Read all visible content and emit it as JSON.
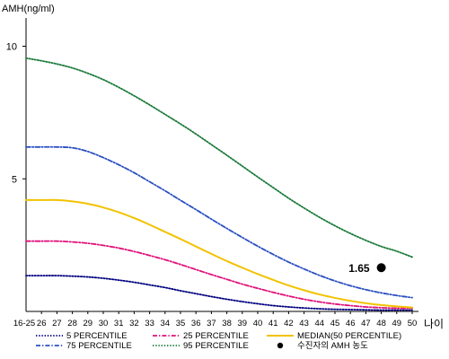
{
  "chart_data": {
    "type": "line",
    "title": "",
    "ylabel": "AMH(ng/ml)",
    "xlabel": "나이",
    "ylim": [
      0,
      11
    ],
    "yticks": [
      5,
      10
    ],
    "x": [
      "16-25",
      "26",
      "27",
      "28",
      "29",
      "30",
      "31",
      "32",
      "33",
      "34",
      "35",
      "36",
      "37",
      "38",
      "39",
      "40",
      "41",
      "42",
      "43",
      "44",
      "45",
      "46",
      "47",
      "48",
      "49",
      "50"
    ],
    "series": [
      {
        "name": "5 PERCENTILE",
        "color": "#000080",
        "style": "dotted",
        "values": [
          1.35,
          1.35,
          1.35,
          1.33,
          1.3,
          1.25,
          1.18,
          1.1,
          1.0,
          0.9,
          0.78,
          0.67,
          0.56,
          0.46,
          0.37,
          0.29,
          0.22,
          0.17,
          0.13,
          0.1,
          0.08,
          0.07,
          0.06,
          0.05,
          0.05,
          0.05
        ]
      },
      {
        "name": "25 PERCENTILE",
        "color": "#e0107a",
        "style": "dashdot",
        "values": [
          2.65,
          2.65,
          2.65,
          2.62,
          2.57,
          2.49,
          2.39,
          2.26,
          2.11,
          1.95,
          1.77,
          1.58,
          1.39,
          1.21,
          1.03,
          0.87,
          0.72,
          0.58,
          0.46,
          0.36,
          0.28,
          0.22,
          0.17,
          0.14,
          0.12,
          0.12
        ]
      },
      {
        "name": "MEDIAN(50 PERCENTILE)",
        "color": "#f2c200",
        "style": "solid",
        "values": [
          4.2,
          4.2,
          4.2,
          4.15,
          4.06,
          3.92,
          3.74,
          3.52,
          3.27,
          3.0,
          2.73,
          2.45,
          2.17,
          1.9,
          1.65,
          1.41,
          1.19,
          0.98,
          0.8,
          0.64,
          0.51,
          0.4,
          0.31,
          0.24,
          0.19,
          0.15
        ]
      },
      {
        "name": "75 PERCENTILE",
        "color": "#2a4fc0",
        "style": "dashdot",
        "values": [
          6.2,
          6.2,
          6.2,
          6.17,
          6.03,
          5.8,
          5.53,
          5.23,
          4.89,
          4.55,
          4.19,
          3.84,
          3.48,
          3.13,
          2.79,
          2.46,
          2.15,
          1.86,
          1.6,
          1.36,
          1.15,
          0.97,
          0.82,
          0.7,
          0.6,
          0.52
        ]
      },
      {
        "name": "95 PERCENTILE",
        "color": "#1a7a3a",
        "style": "dotted",
        "values": [
          9.55,
          9.45,
          9.33,
          9.18,
          8.98,
          8.74,
          8.45,
          8.13,
          7.79,
          7.43,
          7.07,
          6.69,
          6.29,
          5.89,
          5.48,
          5.07,
          4.67,
          4.27,
          3.9,
          3.55,
          3.23,
          2.94,
          2.68,
          2.45,
          2.27,
          2.05
        ]
      }
    ],
    "highlight_point": {
      "name": "수진자의 AMH 농도",
      "x": "48",
      "y": 1.65,
      "label": "1.65",
      "color": "#000000"
    },
    "legend_position": "bottom",
    "grid": false
  }
}
